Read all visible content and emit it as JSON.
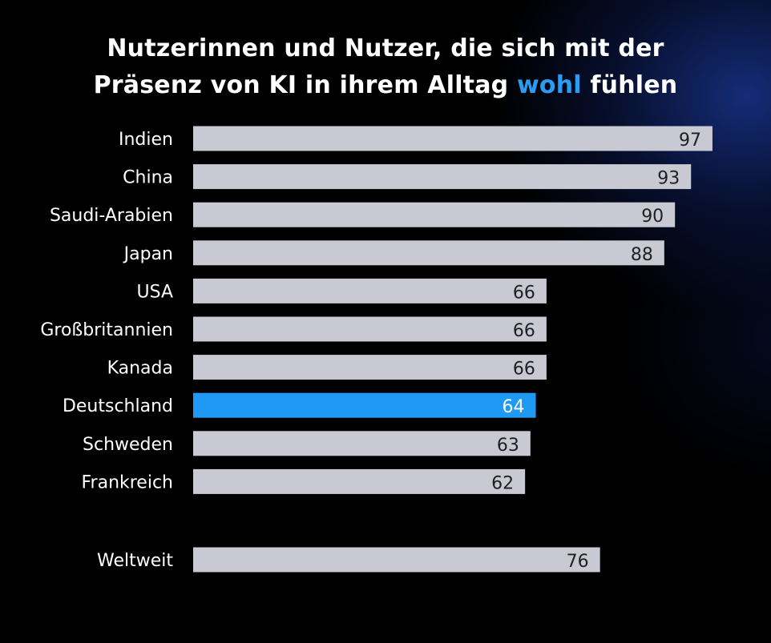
{
  "title": {
    "line1": "Nutzerinnen und Nutzer, die sich mit der",
    "line2_before": "Präsenz von KI in ihrem Alltag ",
    "line2_highlight": "wohl",
    "line2_after": " fühlen"
  },
  "colors": {
    "background": "#000000",
    "bar_default": "#c8c9d2",
    "bar_highlight": "#1e9af5",
    "label_default": "#1f1f24",
    "label_highlight": "#ffffff",
    "accent_text": "#2a9cf2"
  },
  "chart_data": {
    "type": "bar",
    "orientation": "horizontal",
    "categories": [
      "Indien",
      "China",
      "Saudi-Arabien",
      "Japan",
      "USA",
      "Großbritannien",
      "Kanada",
      "Deutschland",
      "Schweden",
      "Frankreich",
      "Weltweit"
    ],
    "values": [
      97,
      93,
      90,
      88,
      66,
      66,
      66,
      64,
      63,
      62,
      76
    ],
    "highlight": "Deutschland",
    "separated": "Weltweit",
    "xlim": [
      0,
      100
    ],
    "grid": false,
    "legend": "none"
  }
}
